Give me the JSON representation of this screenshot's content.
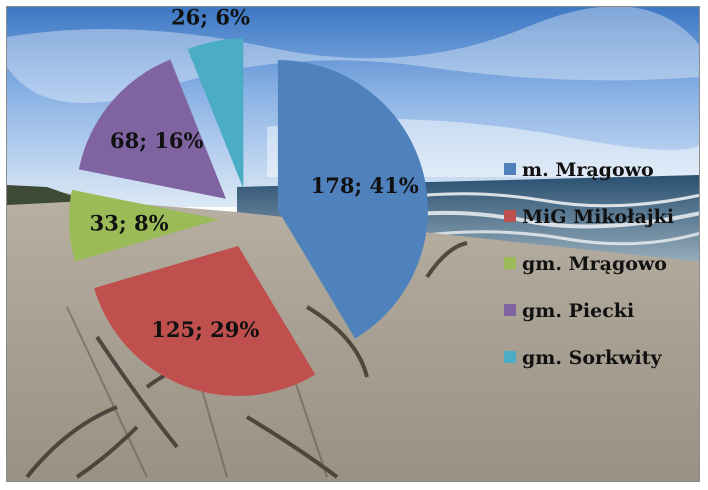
{
  "chart_data": {
    "type": "pie",
    "exploded": true,
    "background": "beach photograph with sea, sky and driftwood",
    "slices": [
      {
        "name": "m. Mrągowo",
        "value": 178,
        "percent": "41%",
        "label": "178; 41%",
        "color": "#4f81bd"
      },
      {
        "name": "MiG Mikołajki",
        "value": 125,
        "percent": "29%",
        "label": "125; 29%",
        "color": "#c0504d"
      },
      {
        "name": "gm. Mrągowo",
        "value": 33,
        "percent": "8%",
        "label": "33; 8%",
        "color": "#9bbb59"
      },
      {
        "name": "gm. Piecki",
        "value": 68,
        "percent": "16%",
        "label": "68; 16%",
        "color": "#8064a2"
      },
      {
        "name": "gm. Sorkwity",
        "value": 26,
        "percent": "6%",
        "label": "26; 6%",
        "color": "#4bacc6"
      }
    ],
    "legend": {
      "position": "right"
    }
  }
}
